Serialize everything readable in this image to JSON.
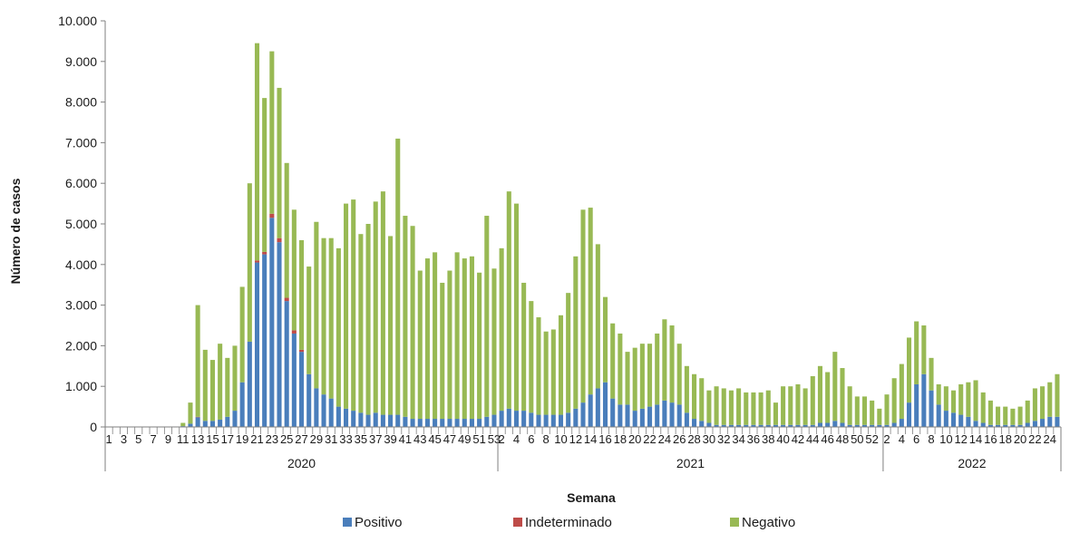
{
  "chart_data": {
    "type": "bar",
    "stacked": true,
    "ylabel": "Número de casos",
    "xlabel": "Semana",
    "ylim": [
      0,
      10000
    ],
    "yticks": [
      "0",
      "1.000",
      "2.000",
      "3.000",
      "4.000",
      "5.000",
      "6.000",
      "7.000",
      "8.000",
      "9.000",
      "10.000"
    ],
    "grid": false,
    "legend_position": "bottom",
    "colors": {
      "positivo": "#4a7ebb",
      "indeterminado": "#be4b48",
      "negativo": "#98b954"
    },
    "series_names": [
      "Positivo",
      "Indeterminado",
      "Negativo"
    ],
    "years": [
      {
        "label": "2020",
        "weeks": 53
      },
      {
        "label": "2021",
        "weeks": 52
      },
      {
        "label": "2022",
        "weeks": 24
      }
    ],
    "week_labels": [
      1,
      3,
      5,
      7,
      9,
      11,
      13,
      15,
      17,
      19,
      21,
      23,
      25,
      27,
      29,
      31,
      33,
      35,
      37,
      39,
      41,
      43,
      45,
      47,
      49,
      51,
      53,
      2,
      4,
      6,
      8,
      10,
      12,
      14,
      16,
      18,
      20,
      22,
      24,
      26,
      28,
      30,
      32,
      34,
      36,
      38,
      40,
      42,
      44,
      46,
      48,
      50,
      52,
      2,
      4,
      6,
      8,
      10,
      12,
      14,
      16,
      18,
      20,
      22,
      24
    ],
    "totals": [
      0,
      0,
      0,
      0,
      0,
      0,
      0,
      0,
      0,
      0,
      100,
      600,
      3000,
      1900,
      1650,
      2050,
      1700,
      2000,
      3450,
      6000,
      9450,
      8100,
      9250,
      8350,
      6500,
      5350,
      4600,
      3950,
      5050,
      4650,
      4650,
      4400,
      5500,
      5600,
      4750,
      5000,
      5550,
      5800,
      4700,
      7100,
      5200,
      4950,
      3850,
      4150,
      4300,
      3550,
      3850,
      4300,
      4150,
      4200,
      3800,
      5200,
      3900,
      4400,
      5800,
      5500,
      3550,
      3100,
      2700,
      2350,
      2400,
      2750,
      3300,
      4200,
      5350,
      5400,
      4500,
      3200,
      2550,
      2300,
      1850,
      1950,
      2050,
      2050,
      2300,
      2650,
      2500,
      2050,
      1500,
      1300,
      1200,
      900,
      1000,
      950,
      900,
      950,
      850,
      850,
      850,
      900,
      600,
      1000,
      1000,
      1050,
      950,
      1250,
      1500,
      1350,
      1850,
      1450,
      1000,
      750,
      750,
      650,
      450,
      800,
      1200,
      1550,
      2200,
      2600,
      2500,
      1700,
      1050,
      1000,
      900,
      1050,
      1100,
      1150,
      850,
      650,
      500,
      500,
      450,
      500,
      650,
      950,
      1000,
      1100,
      1300
    ],
    "positivo": [
      0,
      0,
      0,
      0,
      0,
      0,
      0,
      0,
      0,
      0,
      20,
      80,
      240,
      150,
      150,
      180,
      250,
      400,
      1100,
      2100,
      4050,
      4250,
      5150,
      4550,
      3100,
      2300,
      1850,
      1300,
      950,
      800,
      700,
      500,
      450,
      400,
      350,
      300,
      350,
      300,
      300,
      300,
      250,
      200,
      200,
      200,
      200,
      200,
      200,
      200,
      200,
      200,
      200,
      250,
      300,
      400,
      450,
      400,
      400,
      350,
      300,
      300,
      300,
      300,
      350,
      450,
      600,
      800,
      950,
      1100,
      700,
      550,
      550,
      400,
      450,
      500,
      550,
      650,
      600,
      550,
      350,
      200,
      150,
      100,
      50,
      50,
      50,
      50,
      50,
      50,
      50,
      50,
      50,
      50,
      50,
      50,
      50,
      50,
      100,
      100,
      150,
      100,
      50,
      50,
      50,
      50,
      50,
      50,
      100,
      200,
      600,
      1050,
      1300,
      900,
      550,
      400,
      350,
      300,
      250,
      150,
      100,
      50,
      50,
      50,
      50,
      50,
      100,
      150,
      200,
      250,
      250
    ],
    "indeterminado": [
      0,
      0,
      0,
      0,
      0,
      0,
      0,
      0,
      0,
      0,
      0,
      0,
      10,
      0,
      0,
      0,
      0,
      0,
      0,
      0,
      50,
      60,
      100,
      100,
      80,
      80,
      50,
      0,
      0,
      0,
      0,
      0,
      0,
      0,
      0,
      0,
      0,
      0,
      0,
      0,
      0,
      0,
      0,
      0,
      0,
      0,
      0,
      0,
      0,
      0,
      0,
      0,
      0,
      0,
      0,
      0,
      0,
      0,
      0,
      0,
      0,
      0,
      0,
      0,
      0,
      0,
      0,
      0,
      0,
      0,
      0,
      0,
      0,
      0,
      0,
      0,
      0,
      0,
      0,
      0,
      0,
      0,
      0,
      0,
      0,
      0,
      0,
      0,
      0,
      0,
      0,
      0,
      0,
      0,
      0,
      0,
      0,
      0,
      0,
      0,
      0,
      0,
      0,
      0,
      0,
      0,
      0,
      0,
      0,
      0,
      0,
      0,
      0,
      0,
      0,
      0,
      0,
      0,
      0,
      0,
      0,
      0,
      0,
      0,
      0,
      0,
      0,
      0,
      0
    ]
  }
}
